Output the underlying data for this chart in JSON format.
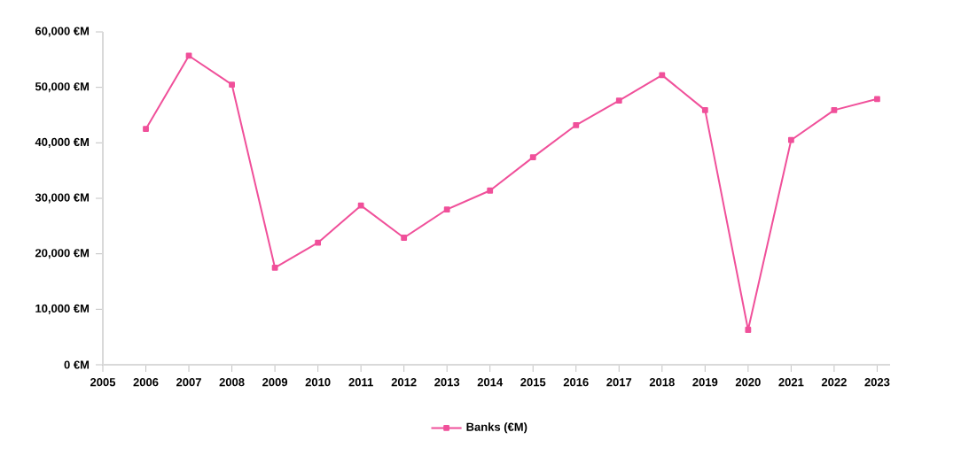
{
  "chart_data": {
    "type": "line",
    "x": [
      2006,
      2007,
      2008,
      2009,
      2010,
      2011,
      2012,
      2013,
      2014,
      2015,
      2016,
      2017,
      2018,
      2019,
      2020,
      2021,
      2022,
      2023
    ],
    "series": [
      {
        "name": "Banks (€M)",
        "color": "#f0509a",
        "values": [
          42500,
          55700,
          50500,
          17500,
          22000,
          28700,
          22900,
          28000,
          31400,
          37400,
          43200,
          47600,
          52200,
          45900,
          6300,
          40500,
          45900,
          47900
        ]
      }
    ],
    "xlim": [
      2005,
      2023.3
    ],
    "xticks": [
      2005,
      2006,
      2007,
      2008,
      2009,
      2010,
      2011,
      2012,
      2013,
      2014,
      2015,
      2016,
      2017,
      2018,
      2019,
      2020,
      2021,
      2022,
      2023
    ],
    "ylim": [
      0,
      60000
    ],
    "yticks": [
      {
        "value": 0,
        "label": "0 €M"
      },
      {
        "value": 10000,
        "label": "10,000 €M"
      },
      {
        "value": 20000,
        "label": "20,000 €M"
      },
      {
        "value": 30000,
        "label": "30,000 €M"
      },
      {
        "value": 40000,
        "label": "40,000 €M"
      },
      {
        "value": 50000,
        "label": "50,000 €M"
      },
      {
        "value": 60000,
        "label": "60,000 €M"
      }
    ],
    "grid": false,
    "legend": "bottom",
    "marker": "square",
    "line_style": "solid"
  }
}
